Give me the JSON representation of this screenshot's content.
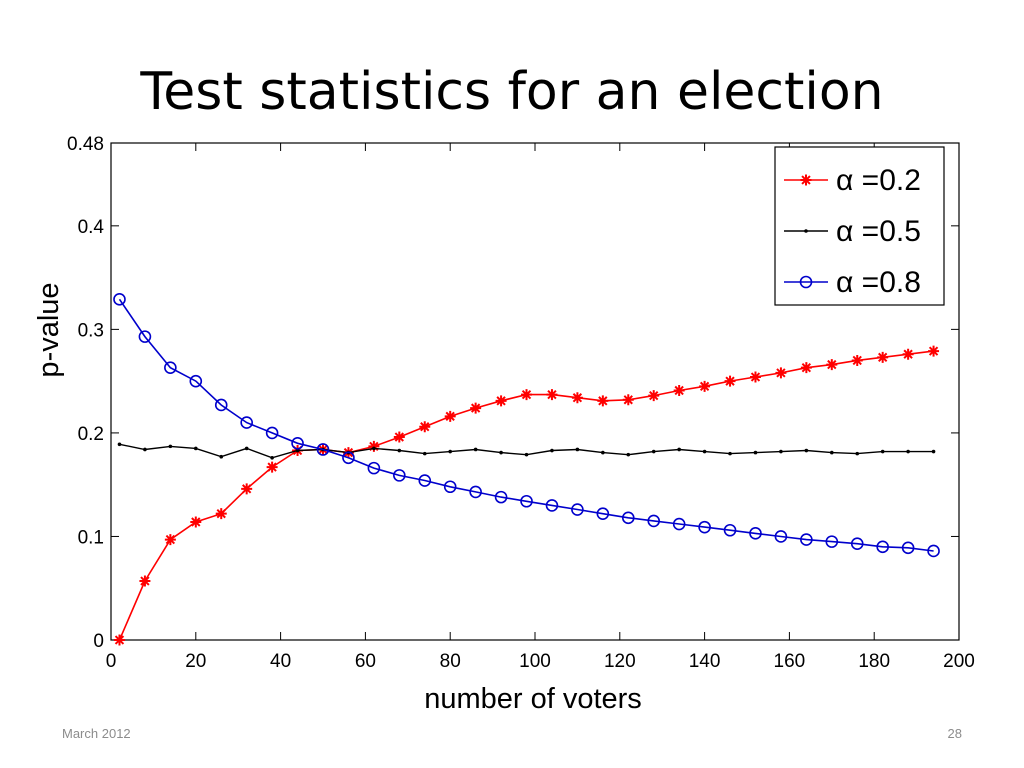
{
  "slide": {
    "title": "Test statistics for an election",
    "footer_date": "March 2012",
    "page_number": "28"
  },
  "chart_data": {
    "type": "line",
    "title": "",
    "xlabel": "number of voters",
    "ylabel": "p-value",
    "xlim": [
      0,
      200
    ],
    "ylim": [
      0,
      0.48
    ],
    "xticks": [
      0,
      20,
      40,
      60,
      80,
      100,
      120,
      140,
      160,
      180,
      200
    ],
    "yticks": [
      0,
      0.1,
      0.2,
      0.3,
      0.4,
      0.48
    ],
    "ytick_labels": [
      "0",
      "0.1",
      "0.2",
      "0.3",
      "0.4",
      "0.48"
    ],
    "grid": false,
    "legend_position": "top-right",
    "series": [
      {
        "name": "α =0.2",
        "color": "#ff0000",
        "marker": "star",
        "x": [
          2,
          8,
          14,
          20,
          26,
          32,
          38,
          44,
          50,
          56,
          62,
          68,
          74,
          80,
          86,
          92,
          98,
          104,
          110,
          116,
          122,
          128,
          134,
          140,
          146,
          152,
          158,
          164,
          170,
          176,
          182,
          188,
          194
        ],
        "y": [
          0.0,
          0.057,
          0.097,
          0.114,
          0.122,
          0.146,
          0.167,
          0.183,
          0.184,
          0.181,
          0.187,
          0.196,
          0.206,
          0.216,
          0.224,
          0.231,
          0.237,
          0.237,
          0.234,
          0.231,
          0.232,
          0.236,
          0.241,
          0.245,
          0.25,
          0.254,
          0.258,
          0.263,
          0.266,
          0.27,
          0.273,
          0.276,
          0.279
        ]
      },
      {
        "name": "α =0.5",
        "color": "#000000",
        "marker": "dot",
        "x": [
          2,
          8,
          14,
          20,
          26,
          32,
          38,
          44,
          50,
          56,
          62,
          68,
          74,
          80,
          86,
          92,
          98,
          104,
          110,
          116,
          122,
          128,
          134,
          140,
          146,
          152,
          158,
          164,
          170,
          176,
          182,
          188,
          194
        ],
        "y": [
          0.189,
          0.184,
          0.187,
          0.185,
          0.177,
          0.185,
          0.176,
          0.183,
          0.184,
          0.181,
          0.185,
          0.183,
          0.18,
          0.182,
          0.184,
          0.181,
          0.179,
          0.183,
          0.184,
          0.181,
          0.179,
          0.182,
          0.184,
          0.182,
          0.18,
          0.181,
          0.182,
          0.183,
          0.181,
          0.18,
          0.182,
          0.182,
          0.182
        ]
      },
      {
        "name": "α =0.8",
        "color": "#0000cc",
        "marker": "circle",
        "x": [
          2,
          8,
          14,
          20,
          26,
          32,
          38,
          44,
          50,
          56,
          62,
          68,
          74,
          80,
          86,
          92,
          98,
          104,
          110,
          116,
          122,
          128,
          134,
          140,
          146,
          152,
          158,
          164,
          170,
          176,
          182,
          188,
          194
        ],
        "y": [
          0.329,
          0.293,
          0.263,
          0.25,
          0.227,
          0.21,
          0.2,
          0.19,
          0.184,
          0.176,
          0.166,
          0.159,
          0.154,
          0.148,
          0.143,
          0.138,
          0.134,
          0.13,
          0.126,
          0.122,
          0.118,
          0.115,
          0.112,
          0.109,
          0.106,
          0.103,
          0.1,
          0.097,
          0.095,
          0.093,
          0.09,
          0.089,
          0.086
        ]
      }
    ]
  }
}
